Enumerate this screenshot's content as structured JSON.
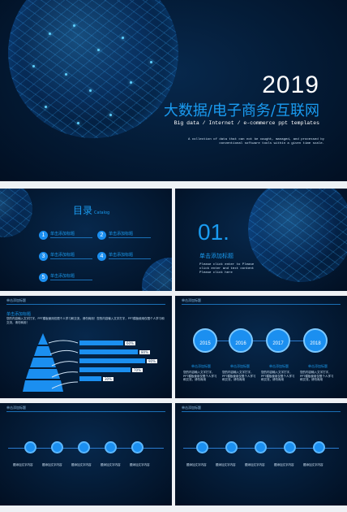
{
  "cover": {
    "year": "2019",
    "title": "大数据/电子商务/互联网",
    "subtitle": "Big data / Internet / e-commerce ppt templates",
    "description": "A collection of data that can not be caught, managed, and processed by conventional software tools within a given time scale."
  },
  "toc": {
    "title": "目录",
    "title_en": "Catalog",
    "items": [
      {
        "num": "1",
        "label": "单击添加标题"
      },
      {
        "num": "2",
        "label": "单击添加标题"
      },
      {
        "num": "3",
        "label": "单击添加标题"
      },
      {
        "num": "4",
        "label": "单击添加标题"
      },
      {
        "num": "5",
        "label": "单击添加标题"
      }
    ]
  },
  "section": {
    "number": "01.",
    "title": "单击添加标题",
    "body": "Please click enter to Please click enter and text content Please click here"
  },
  "pyramid_slide": {
    "header": "单击添加标题",
    "subtitle": "单击添加标题",
    "text": "您的内容输入文字打字，PPT模板使用仅限个人学习和交流，请勿商用！您的内容输入文字打字，PPT模板使用仅限个人学习和交流，请勿商用！",
    "bars": [
      {
        "value": 60,
        "label": "60%"
      },
      {
        "value": 80,
        "label": "80%"
      },
      {
        "value": 90,
        "label": "90%"
      },
      {
        "value": 70,
        "label": "70%"
      },
      {
        "value": 30,
        "label": "30%"
      }
    ]
  },
  "years_slide": {
    "header": "单击添加标题",
    "years": [
      "2015",
      "2016",
      "2017",
      "2018"
    ],
    "items": [
      {
        "title": "单击添加标题",
        "text": "您的内容输入文字打字，PPT模板使用仅限个人学习和交流，请勿商用"
      },
      {
        "title": "单击添加标题",
        "text": "您的内容输入文字打字，PPT模板使用仅限个人学习和交流，请勿商用"
      },
      {
        "title": "单击添加标题",
        "text": "您的内容输入文字打字，PPT模板使用仅限个人学习和交流，请勿商用"
      },
      {
        "title": "单击添加标题",
        "text": "您的内容输入文字打字，PPT模板使用仅限个人学习和交流，请勿商用"
      }
    ]
  },
  "timeline_left": {
    "header": "单击添加标题",
    "items": [
      "题添加文字内容",
      "题添加文字内容",
      "题添加文字内容",
      "题添加文字内容",
      "题添加文字内容"
    ]
  },
  "timeline_right": {
    "header": "单击添加标题",
    "items": [
      "题添加文字内容",
      "题添加文字内容",
      "题添加文字内容",
      "题添加文字内容",
      "题添加文字内容"
    ]
  }
}
